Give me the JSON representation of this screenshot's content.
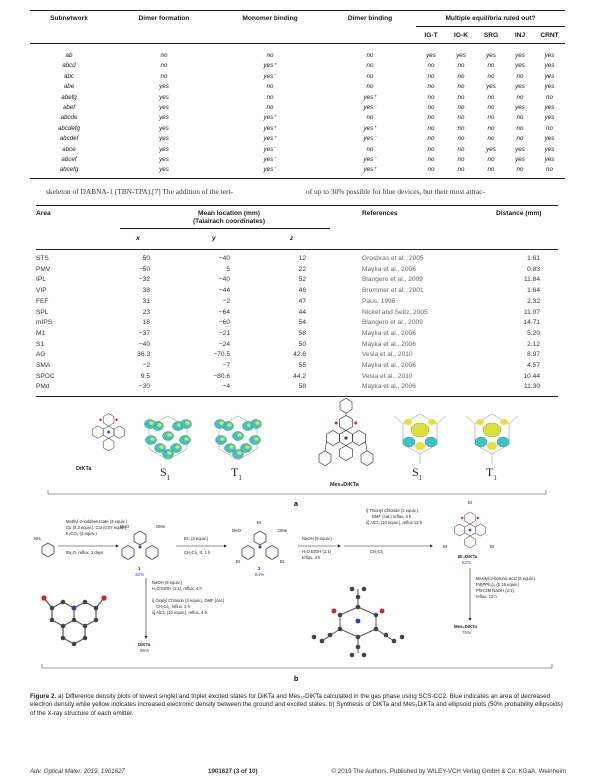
{
  "table1": {
    "headers": {
      "subnetwork": "Subnetwork",
      "dimer_formation": "Dimer formation",
      "monomer_binding": "Monomer binding",
      "dimer_binding": "Dimer binding",
      "multiple_equilibria": "Multiple equilibria ruled out?",
      "sub": [
        "IG-T",
        "IG-K",
        "SRG",
        "INJ",
        "CRNT"
      ]
    },
    "rows": [
      [
        "ab",
        "no",
        "no",
        "no",
        "yes",
        "yes",
        "yes",
        "yes",
        "yes"
      ],
      [
        "abcd",
        "no",
        "yes⁺",
        "no",
        "no",
        "no",
        "no",
        "yes",
        "yes"
      ],
      [
        "abc",
        "no",
        "yes⁻",
        "no",
        "no",
        "no",
        "no",
        "no",
        "yes"
      ],
      [
        "abe",
        "yes",
        "no",
        "no",
        "no",
        "no",
        "yes",
        "yes",
        "yes"
      ],
      [
        "abefg",
        "yes",
        "no",
        "yes⁺",
        "no",
        "no",
        "no",
        "no",
        "no"
      ],
      [
        "abef",
        "yes",
        "no",
        "yes⁻",
        "no",
        "no",
        "no",
        "yes",
        "yes"
      ],
      [
        "abcde",
        "yes",
        "yes⁺",
        "no",
        "no",
        "no",
        "no",
        "no",
        "yes"
      ],
      [
        "abcdefg",
        "yes",
        "yes⁺",
        "yes⁺",
        "no",
        "no",
        "no",
        "no",
        "no"
      ],
      [
        "abcdef",
        "yes",
        "yes⁺",
        "yes⁻",
        "no",
        "no",
        "no",
        "no",
        "yes"
      ],
      [
        "abce",
        "yes",
        "yes⁻",
        "no",
        "no",
        "no",
        "yes",
        "yes",
        "yes"
      ],
      [
        "abcef",
        "yes",
        "yes⁻",
        "yes⁻",
        "no",
        "no",
        "no",
        "yes",
        "yes"
      ],
      [
        "abcefg",
        "yes",
        "yes⁻",
        "yes⁺",
        "no",
        "no",
        "no",
        "no",
        "no"
      ]
    ]
  },
  "body_text": {
    "left": "skeleton of DABNA-1 (TBN-TPA).[7] The addition of the tert-",
    "right": "of up to 30% possible for blue devices, but their most attrac-"
  },
  "table2": {
    "headers": {
      "area": "Area",
      "mean_location": "Mean location (mm)",
      "mean_location_sub": "(Talairach coordinates)",
      "x": "x",
      "y": "y",
      "z": "z",
      "references": "References",
      "distance": "Distance (mm)"
    },
    "rows": [
      [
        "STS",
        "50",
        "−40",
        "12",
        "Grosbras et al., 2005",
        "1.61"
      ],
      [
        "PMV",
        "−50",
        "5",
        "22",
        "Mayka et al., 2006",
        "0.83"
      ],
      [
        "IPL",
        "−32",
        "−40",
        "52",
        "Blangero et al., 2009",
        "11.84"
      ],
      [
        "VIP",
        "38",
        "−44",
        "46",
        "Bremmer et al., 2001",
        "1.64"
      ],
      [
        "FEF",
        "31",
        "−2",
        "47",
        "Paus, 1996",
        "2.32"
      ],
      [
        "SPL",
        "23",
        "−64",
        "44",
        "Nickel and Seitz, 2005",
        "11.07"
      ],
      [
        "mIPS",
        "18",
        "−60",
        "54",
        "Blangero et al., 2009",
        "14.71"
      ],
      [
        "M1",
        "−37",
        "−21",
        "58",
        "Mayka et al., 2006",
        "5.20"
      ],
      [
        "S1",
        "−40",
        "−24",
        "50",
        "Mayka et al., 2006",
        "2.12"
      ],
      [
        "AG",
        "36.3",
        "−70.5",
        "42.6",
        "Vesia et al., 2010",
        "8.97"
      ],
      [
        "SMA",
        "−2",
        "−7",
        "55",
        "Mayka et al., 2006",
        "4.57"
      ],
      [
        "SPOC",
        "9.5",
        "−80.6",
        "44.2",
        "Vesia et al., 2010",
        "10.44"
      ],
      [
        "PMd",
        "−30",
        "−4",
        "58",
        "Mayka et al., 2006",
        "11.30"
      ]
    ]
  },
  "figure": {
    "panel_a": {
      "mol1": "DiKTa",
      "mol2": "Mes₃DiKTa",
      "states": [
        "S",
        "T"
      ],
      "state_sub": "1",
      "label": "a"
    },
    "panel_b": {
      "label": "b",
      "step1": [
        "Methyl-2-iodobenzoate (3 equiv.)",
        "Cu (0.3 equiv.), CuI (0.07 equiv.)",
        "K₂CO₃ (3 equiv.)",
        "Bu₂O, reflux, 3 days"
      ],
      "step2": [
        "Br₂ (3 equiv.)",
        "CH₂Cl₂, rt, 1 h"
      ],
      "step3": [
        "NaOH (5 equiv.)",
        "H₂O:EtOH (1:1)",
        "reflux, 4 h"
      ],
      "step4": [
        "i) Thionyl Chloride (2 equiv.),",
        "DMF (cat.) reflux, 3 h",
        "ii) AlCl₃ (10 equiv.), reflux 12 h",
        "CH₂Cl₂"
      ],
      "step5": [
        "NaOH (5 equiv.)",
        "H₂O:EtOH (1:1), reflux, 4 h",
        "i) Oxalyl Chloride (2 equiv.), DMF (cat.)",
        "CH₂Cl₂, reflux, 3 h",
        "ii) AlCl₃ (10 equiv.), reflux, 4 h"
      ],
      "step6": [
        "Mesityl-2-boronic acid (6 equiv.)",
        "Pd(PPh₃)₄ (0.15 equiv.)",
        "PhH:2M NaOH (3:1),",
        "reflux, 12 h"
      ],
      "compound1": "1",
      "yield1": "32%",
      "compound2": "2",
      "yield2": "84%",
      "dikta": "DiKTa",
      "yield_dikta": "86%",
      "br3dikta": "Br₃DiKTa",
      "yield_br3": "52%",
      "mes3dikta": "Mes₃DiKTa",
      "yield_mes3": "75%",
      "nh2": "NH₂",
      "meo": "MeO",
      "ome": "OMe",
      "br": "Br"
    }
  },
  "caption": {
    "label": "Figure 2.",
    "text": "a) Difference density plots of lowest singlet and triplet excited states for DiKTa and Mes₃-DiKTa calculated in the gas phase using SCS-CC2. Blue indicates an area of decreased electron density while yellow indicates increased electronic density between the ground and excited states. b) Synthesis of DiKTa and Mes₃DiKTa and ellipsoid plots (50% probability ellipsoids) of the X-ray structure of each emitter."
  },
  "footer": {
    "journal": "Adv. Optical Mater. 2019, 1901627",
    "article": "1901627  (3 of 10)",
    "copyright": "© 2019 The Authors. Published by WILEY-VCH Verlag GmbH & Co. KGaA, Weinheim"
  }
}
